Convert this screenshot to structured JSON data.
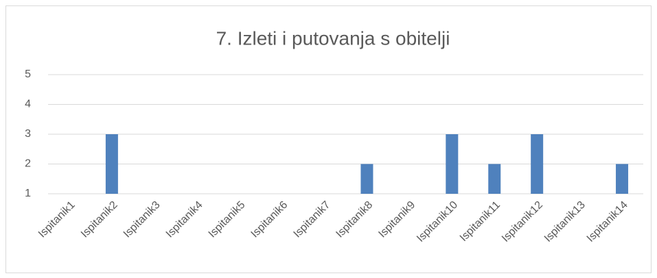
{
  "chart_data": {
    "type": "bar",
    "title": "7. Izleti i putovanja s obitelji",
    "categories": [
      "Ispitanik1",
      "Ispitanik2",
      "Ispitanik3",
      "Ispitanik4",
      "Ispitanik5",
      "Ispitanik6",
      "Ispitanik7",
      "Ispitanik8",
      "Ispitanik9",
      "Ispitanik10",
      "Ispitanik11",
      "Ispitanik12",
      "Ispitanik13",
      "Ispitanik14"
    ],
    "values": [
      1,
      3,
      1,
      1,
      1,
      1,
      1,
      2,
      1,
      3,
      2,
      3,
      1,
      2
    ],
    "color": "#4f81bd",
    "ylim": [
      1,
      5
    ],
    "yticks": [
      1,
      2,
      3,
      4,
      5
    ],
    "grid": true
  }
}
